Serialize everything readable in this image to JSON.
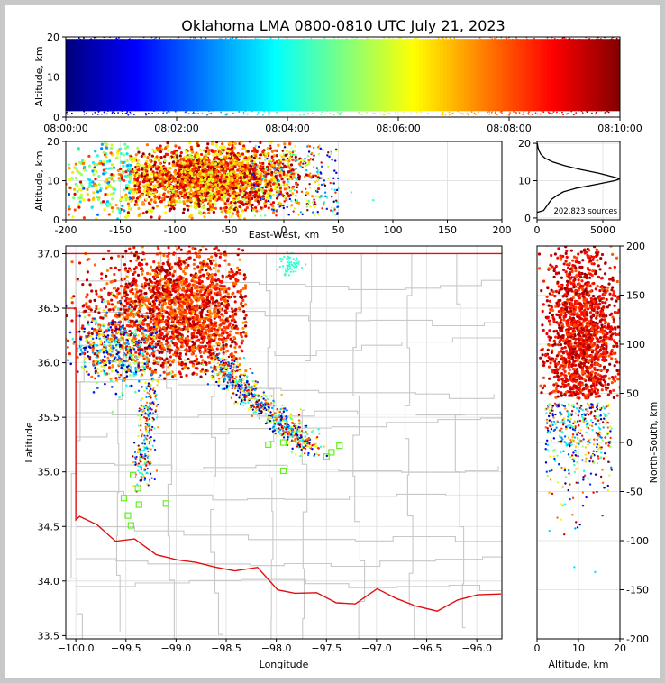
{
  "figure": {
    "title": "Oklahoma LMA 0800-0810 UTC July 21, 2023"
  },
  "colormap": "jet",
  "colors": {
    "state_border": "#e01010",
    "county_lines": "#c8c8c8",
    "grid": "#dddddd",
    "station_marker": "#66ee22"
  },
  "chart_data": [
    {
      "id": "time_height",
      "type": "scatter",
      "xlabel": "",
      "ylabel": "Altitude, km",
      "xticks": [
        "08:00:00",
        "08:02:00",
        "08:04:00",
        "08:06:00",
        "08:08:00",
        "08:10:00"
      ],
      "x_minutes": [
        0,
        2,
        4,
        6,
        8,
        10
      ],
      "xlim": [
        0,
        10
      ],
      "ylim": [
        0,
        20
      ],
      "yticks": [
        0,
        10,
        20
      ],
      "color_by": "time",
      "grid": true
    },
    {
      "id": "ew_altitude",
      "type": "scatter",
      "xlabel": "East-West, km",
      "ylabel": "Altitude, km",
      "xlim": [
        -200,
        200
      ],
      "xticks": [
        -200,
        -150,
        -100,
        -50,
        0,
        50,
        100,
        150,
        200
      ],
      "ylim": [
        0,
        20
      ],
      "yticks": [
        0,
        10,
        20
      ],
      "color_by": "time",
      "grid": true
    },
    {
      "id": "altitude_histogram",
      "type": "line",
      "xlim": [
        0,
        6300
      ],
      "xticks": [
        0,
        5000
      ],
      "ylim": [
        -0.5,
        20.5
      ],
      "yticks": [
        0,
        10,
        20
      ],
      "annotation": "202,823 sources",
      "profile": {
        "altitude_km": [
          1.5,
          2,
          3,
          4,
          5,
          6,
          7,
          8,
          9,
          10,
          10.5,
          11,
          12,
          13,
          14,
          15,
          16,
          17,
          18,
          19,
          20
        ],
        "count": [
          0,
          500,
          700,
          900,
          1100,
          1500,
          2000,
          3000,
          4500,
          5900,
          6300,
          5800,
          4700,
          3300,
          2100,
          1200,
          600,
          300,
          150,
          60,
          20
        ]
      }
    },
    {
      "id": "plan_view",
      "type": "scatter",
      "xlabel": "Longitude",
      "ylabel": "Latitude",
      "xlim": [
        -100.1,
        -95.75
      ],
      "xticks": [
        -100.0,
        -99.5,
        -99.0,
        -98.5,
        -98.0,
        -97.5,
        -97.0,
        -96.5,
        -96.0
      ],
      "xticklabels": [
        "−100.0",
        "−99.5",
        "−99.0",
        "−98.5",
        "−98.0",
        "−97.5",
        "−97.0",
        "−96.5",
        "−96.0"
      ],
      "ylim": [
        33.47,
        37.07
      ],
      "yticks": [
        33.5,
        34.0,
        34.5,
        35.0,
        35.5,
        36.0,
        36.5,
        37.0
      ],
      "yticklabels": [
        "33.5",
        "34.0",
        "34.5",
        "35.0",
        "35.5",
        "36.0",
        "36.5",
        "37.0"
      ],
      "color_by": "time",
      "grid": true,
      "stations": [
        {
          "lon": -99.52,
          "lat": 34.76
        },
        {
          "lon": -99.48,
          "lat": 34.6
        },
        {
          "lon": -99.45,
          "lat": 34.51
        },
        {
          "lon": -99.37,
          "lat": 34.7
        },
        {
          "lon": -99.38,
          "lat": 34.85
        },
        {
          "lon": -99.43,
          "lat": 34.97
        },
        {
          "lon": -99.1,
          "lat": 34.71
        },
        {
          "lon": -98.08,
          "lat": 35.25
        },
        {
          "lon": -97.93,
          "lat": 35.27
        },
        {
          "lon": -97.93,
          "lat": 35.01
        },
        {
          "lon": -97.5,
          "lat": 35.14
        },
        {
          "lon": -97.45,
          "lat": 35.18
        },
        {
          "lon": -97.37,
          "lat": 35.24
        }
      ]
    },
    {
      "id": "altitude_ns",
      "type": "scatter",
      "xlabel": "Altitude, km",
      "ylabel": "North-South, km",
      "xlim": [
        0,
        20
      ],
      "xticks": [
        0,
        10,
        20
      ],
      "ylim": [
        -200,
        200
      ],
      "yticks": [
        -200,
        -150,
        -100,
        -50,
        0,
        50,
        100,
        150,
        200
      ],
      "color_by": "time",
      "grid": true
    }
  ]
}
